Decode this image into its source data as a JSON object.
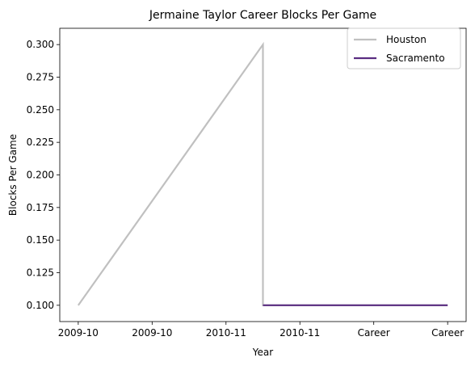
{
  "chart_data": {
    "type": "line",
    "title": "Jermaine Taylor  Career Blocks Per Game",
    "xlabel": "Year",
    "ylabel": "Blocks Per Game",
    "x_ticks": [
      "2009-10",
      "2009-10",
      "2010-11",
      "2010-11",
      "Career",
      "Career"
    ],
    "y_ticks": [
      "0.100",
      "0.125",
      "0.150",
      "0.175",
      "0.200",
      "0.225",
      "0.250",
      "0.275",
      "0.300"
    ],
    "ylim": [
      0.0875,
      0.3125
    ],
    "xlim": [
      -0.25,
      5.25
    ],
    "legend_position": "upper-right",
    "grid": false,
    "series": [
      {
        "name": "Houston",
        "color": "#c0c0c0",
        "points": [
          [
            0,
            0.1
          ],
          [
            1.25,
            0.2
          ],
          [
            2.5,
            0.3
          ],
          [
            2.5,
            0.1
          ],
          [
            5,
            0.1
          ]
        ]
      },
      {
        "name": "Sacramento",
        "color": "#5a2d81",
        "points": [
          [
            2.5,
            0.1
          ],
          [
            5,
            0.1
          ]
        ]
      }
    ]
  }
}
